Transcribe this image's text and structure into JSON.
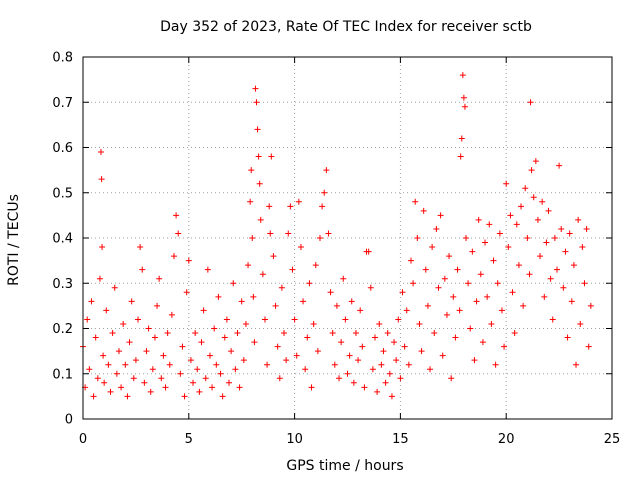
{
  "chart_data": {
    "type": "scatter",
    "title": "Day 352 of 2023, Rate Of TEC Index for receiver sctb",
    "xlabel": "GPS time / hours",
    "ylabel": "ROTI / TECUs",
    "xlim": [
      0,
      25
    ],
    "ylim": [
      0,
      0.8
    ],
    "xticks": [
      0,
      5,
      10,
      15,
      20,
      25
    ],
    "yticks": [
      0,
      0.1,
      0.2,
      0.3,
      0.4,
      0.5,
      0.6,
      0.7,
      0.8
    ],
    "xtick_labels": [
      "0",
      "5",
      "10",
      "15",
      "20",
      "25"
    ],
    "ytick_labels": [
      "0",
      "0.1",
      "0.2",
      "0.3",
      "0.4",
      "0.5",
      "0.6",
      "0.7",
      "0.8"
    ],
    "grid": true,
    "marker": "+",
    "marker_color": "#ff0000",
    "series": [
      {
        "name": "",
        "points": [
          [
            0.0,
            0.16
          ],
          [
            0.1,
            0.07
          ],
          [
            0.2,
            0.22
          ],
          [
            0.3,
            0.11
          ],
          [
            0.4,
            0.26
          ],
          [
            0.5,
            0.05
          ],
          [
            0.6,
            0.18
          ],
          [
            0.7,
            0.09
          ],
          [
            0.8,
            0.31
          ],
          [
            0.85,
            0.59
          ],
          [
            0.88,
            0.53
          ],
          [
            0.9,
            0.38
          ],
          [
            0.95,
            0.14
          ],
          [
            1.0,
            0.08
          ],
          [
            1.1,
            0.24
          ],
          [
            1.2,
            0.12
          ],
          [
            1.3,
            0.06
          ],
          [
            1.4,
            0.19
          ],
          [
            1.5,
            0.29
          ],
          [
            1.6,
            0.1
          ],
          [
            1.7,
            0.15
          ],
          [
            1.8,
            0.07
          ],
          [
            1.9,
            0.21
          ],
          [
            2.0,
            0.12
          ],
          [
            2.1,
            0.05
          ],
          [
            2.2,
            0.17
          ],
          [
            2.3,
            0.26
          ],
          [
            2.4,
            0.09
          ],
          [
            2.5,
            0.13
          ],
          [
            2.6,
            0.22
          ],
          [
            2.7,
            0.38
          ],
          [
            2.8,
            0.33
          ],
          [
            2.9,
            0.08
          ],
          [
            3.0,
            0.15
          ],
          [
            3.1,
            0.2
          ],
          [
            3.2,
            0.06
          ],
          [
            3.3,
            0.11
          ],
          [
            3.4,
            0.18
          ],
          [
            3.5,
            0.25
          ],
          [
            3.6,
            0.31
          ],
          [
            3.7,
            0.09
          ],
          [
            3.8,
            0.14
          ],
          [
            3.9,
            0.07
          ],
          [
            4.0,
            0.19
          ],
          [
            4.1,
            0.12
          ],
          [
            4.2,
            0.23
          ],
          [
            4.3,
            0.36
          ],
          [
            4.4,
            0.45
          ],
          [
            4.5,
            0.41
          ],
          [
            4.6,
            0.1
          ],
          [
            4.7,
            0.16
          ],
          [
            4.8,
            0.05
          ],
          [
            4.9,
            0.28
          ],
          [
            5.0,
            0.35
          ],
          [
            5.1,
            0.13
          ],
          [
            5.2,
            0.08
          ],
          [
            5.3,
            0.19
          ],
          [
            5.4,
            0.11
          ],
          [
            5.5,
            0.06
          ],
          [
            5.6,
            0.17
          ],
          [
            5.7,
            0.24
          ],
          [
            5.8,
            0.09
          ],
          [
            5.9,
            0.33
          ],
          [
            6.0,
            0.14
          ],
          [
            6.1,
            0.07
          ],
          [
            6.2,
            0.2
          ],
          [
            6.3,
            0.12
          ],
          [
            6.4,
            0.27
          ],
          [
            6.5,
            0.1
          ],
          [
            6.6,
            0.05
          ],
          [
            6.7,
            0.18
          ],
          [
            6.8,
            0.22
          ],
          [
            6.9,
            0.08
          ],
          [
            7.0,
            0.15
          ],
          [
            7.1,
            0.3
          ],
          [
            7.2,
            0.11
          ],
          [
            7.3,
            0.19
          ],
          [
            7.4,
            0.07
          ],
          [
            7.5,
            0.26
          ],
          [
            7.6,
            0.13
          ],
          [
            7.7,
            0.21
          ],
          [
            7.8,
            0.34
          ],
          [
            7.9,
            0.48
          ],
          [
            7.95,
            0.55
          ],
          [
            8.0,
            0.4
          ],
          [
            8.05,
            0.27
          ],
          [
            8.1,
            0.17
          ],
          [
            8.15,
            0.73
          ],
          [
            8.2,
            0.7
          ],
          [
            8.25,
            0.64
          ],
          [
            8.3,
            0.58
          ],
          [
            8.35,
            0.52
          ],
          [
            8.4,
            0.44
          ],
          [
            8.5,
            0.32
          ],
          [
            8.6,
            0.22
          ],
          [
            8.7,
            0.12
          ],
          [
            8.8,
            0.47
          ],
          [
            8.85,
            0.41
          ],
          [
            8.9,
            0.58
          ],
          [
            9.0,
            0.36
          ],
          [
            9.1,
            0.25
          ],
          [
            9.2,
            0.16
          ],
          [
            9.3,
            0.09
          ],
          [
            9.4,
            0.29
          ],
          [
            9.5,
            0.19
          ],
          [
            9.6,
            0.13
          ],
          [
            9.7,
            0.41
          ],
          [
            9.8,
            0.47
          ],
          [
            9.9,
            0.33
          ],
          [
            10.0,
            0.22
          ],
          [
            10.1,
            0.14
          ],
          [
            10.2,
            0.48
          ],
          [
            10.3,
            0.38
          ],
          [
            10.4,
            0.26
          ],
          [
            10.5,
            0.11
          ],
          [
            10.6,
            0.18
          ],
          [
            10.7,
            0.3
          ],
          [
            10.8,
            0.07
          ],
          [
            10.9,
            0.21
          ],
          [
            11.0,
            0.34
          ],
          [
            11.1,
            0.15
          ],
          [
            11.2,
            0.4
          ],
          [
            11.3,
            0.47
          ],
          [
            11.4,
            0.5
          ],
          [
            11.5,
            0.55
          ],
          [
            11.6,
            0.41
          ],
          [
            11.7,
            0.28
          ],
          [
            11.8,
            0.19
          ],
          [
            11.9,
            0.12
          ],
          [
            12.0,
            0.25
          ],
          [
            12.1,
            0.09
          ],
          [
            12.2,
            0.17
          ],
          [
            12.3,
            0.31
          ],
          [
            12.4,
            0.22
          ],
          [
            12.5,
            0.1
          ],
          [
            12.6,
            0.14
          ],
          [
            12.7,
            0.26
          ],
          [
            12.8,
            0.08
          ],
          [
            12.9,
            0.19
          ],
          [
            13.0,
            0.13
          ],
          [
            13.1,
            0.24
          ],
          [
            13.2,
            0.16
          ],
          [
            13.3,
            0.07
          ],
          [
            13.4,
            0.37
          ],
          [
            13.5,
            0.37
          ],
          [
            13.6,
            0.29
          ],
          [
            13.7,
            0.11
          ],
          [
            13.8,
            0.18
          ],
          [
            13.9,
            0.06
          ],
          [
            14.0,
            0.21
          ],
          [
            14.1,
            0.12
          ],
          [
            14.2,
            0.15
          ],
          [
            14.3,
            0.08
          ],
          [
            14.4,
            0.19
          ],
          [
            14.5,
            0.1
          ],
          [
            14.6,
            0.05
          ],
          [
            14.7,
            0.17
          ],
          [
            14.8,
            0.13
          ],
          [
            14.9,
            0.22
          ],
          [
            15.0,
            0.09
          ],
          [
            15.1,
            0.28
          ],
          [
            15.2,
            0.16
          ],
          [
            15.3,
            0.24
          ],
          [
            15.4,
            0.12
          ],
          [
            15.5,
            0.35
          ],
          [
            15.6,
            0.3
          ],
          [
            15.7,
            0.48
          ],
          [
            15.8,
            0.4
          ],
          [
            15.9,
            0.21
          ],
          [
            16.0,
            0.15
          ],
          [
            16.1,
            0.46
          ],
          [
            16.2,
            0.33
          ],
          [
            16.3,
            0.25
          ],
          [
            16.4,
            0.11
          ],
          [
            16.5,
            0.38
          ],
          [
            16.6,
            0.19
          ],
          [
            16.7,
            0.42
          ],
          [
            16.8,
            0.29
          ],
          [
            16.9,
            0.45
          ],
          [
            17.0,
            0.14
          ],
          [
            17.1,
            0.31
          ],
          [
            17.2,
            0.23
          ],
          [
            17.3,
            0.36
          ],
          [
            17.4,
            0.09
          ],
          [
            17.5,
            0.27
          ],
          [
            17.6,
            0.18
          ],
          [
            17.7,
            0.33
          ],
          [
            17.8,
            0.24
          ],
          [
            17.85,
            0.58
          ],
          [
            17.9,
            0.62
          ],
          [
            17.95,
            0.76
          ],
          [
            18.0,
            0.71
          ],
          [
            18.05,
            0.69
          ],
          [
            18.1,
            0.4
          ],
          [
            18.2,
            0.3
          ],
          [
            18.3,
            0.2
          ],
          [
            18.4,
            0.37
          ],
          [
            18.5,
            0.13
          ],
          [
            18.6,
            0.26
          ],
          [
            18.7,
            0.44
          ],
          [
            18.8,
            0.32
          ],
          [
            18.9,
            0.17
          ],
          [
            19.0,
            0.39
          ],
          [
            19.1,
            0.27
          ],
          [
            19.2,
            0.43
          ],
          [
            19.3,
            0.21
          ],
          [
            19.4,
            0.35
          ],
          [
            19.5,
            0.12
          ],
          [
            19.6,
            0.3
          ],
          [
            19.7,
            0.41
          ],
          [
            19.8,
            0.24
          ],
          [
            19.9,
            0.16
          ],
          [
            20.0,
            0.52
          ],
          [
            20.1,
            0.38
          ],
          [
            20.2,
            0.45
          ],
          [
            20.3,
            0.28
          ],
          [
            20.4,
            0.19
          ],
          [
            20.5,
            0.43
          ],
          [
            20.6,
            0.34
          ],
          [
            20.7,
            0.47
          ],
          [
            20.8,
            0.25
          ],
          [
            20.9,
            0.51
          ],
          [
            21.0,
            0.4
          ],
          [
            21.1,
            0.32
          ],
          [
            21.15,
            0.7
          ],
          [
            21.2,
            0.55
          ],
          [
            21.3,
            0.49
          ],
          [
            21.4,
            0.57
          ],
          [
            21.5,
            0.44
          ],
          [
            21.6,
            0.36
          ],
          [
            21.7,
            0.48
          ],
          [
            21.8,
            0.27
          ],
          [
            21.9,
            0.39
          ],
          [
            22.0,
            0.46
          ],
          [
            22.1,
            0.31
          ],
          [
            22.2,
            0.22
          ],
          [
            22.3,
            0.4
          ],
          [
            22.4,
            0.33
          ],
          [
            22.5,
            0.56
          ],
          [
            22.6,
            0.42
          ],
          [
            22.7,
            0.29
          ],
          [
            22.8,
            0.37
          ],
          [
            22.9,
            0.18
          ],
          [
            23.0,
            0.41
          ],
          [
            23.1,
            0.26
          ],
          [
            23.2,
            0.34
          ],
          [
            23.3,
            0.12
          ],
          [
            23.4,
            0.44
          ],
          [
            23.5,
            0.21
          ],
          [
            23.6,
            0.38
          ],
          [
            23.7,
            0.3
          ],
          [
            23.8,
            0.42
          ],
          [
            23.9,
            0.16
          ],
          [
            24.0,
            0.25
          ]
        ]
      }
    ]
  }
}
